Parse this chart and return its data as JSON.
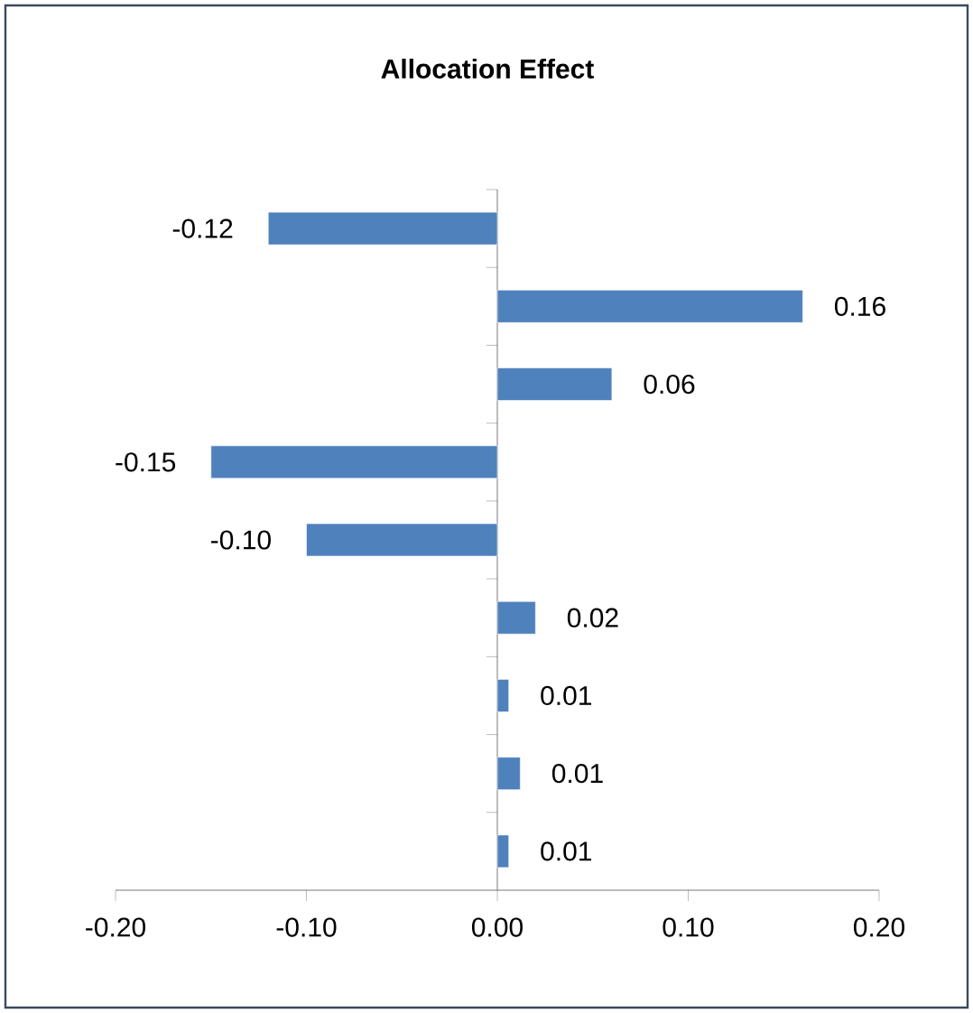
{
  "chart_data": {
    "type": "bar",
    "orientation": "horizontal",
    "title": "Allocation Effect",
    "categories": [
      null,
      null,
      null,
      null,
      null,
      null,
      null,
      null,
      null
    ],
    "values": [
      -0.12,
      0.16,
      0.06,
      -0.15,
      -0.1,
      0.02,
      0.006,
      0.012,
      0.006
    ],
    "value_labels": [
      "-0.12",
      "0.16",
      "0.06",
      "-0.15",
      "-0.10",
      "0.02",
      "0.01",
      "0.01",
      "0.01"
    ],
    "color": "#4f81bd",
    "xlim": [
      -0.2,
      0.2
    ],
    "xticks": [
      {
        "value": -0.2,
        "label": "-0.20"
      },
      {
        "value": -0.1,
        "label": "-0.10"
      },
      {
        "value": 0,
        "label": "0.00"
      },
      {
        "value": 0.1,
        "label": "0.10"
      },
      {
        "value": 0.2,
        "label": "0.20"
      }
    ],
    "tick_labels": "x"
  }
}
